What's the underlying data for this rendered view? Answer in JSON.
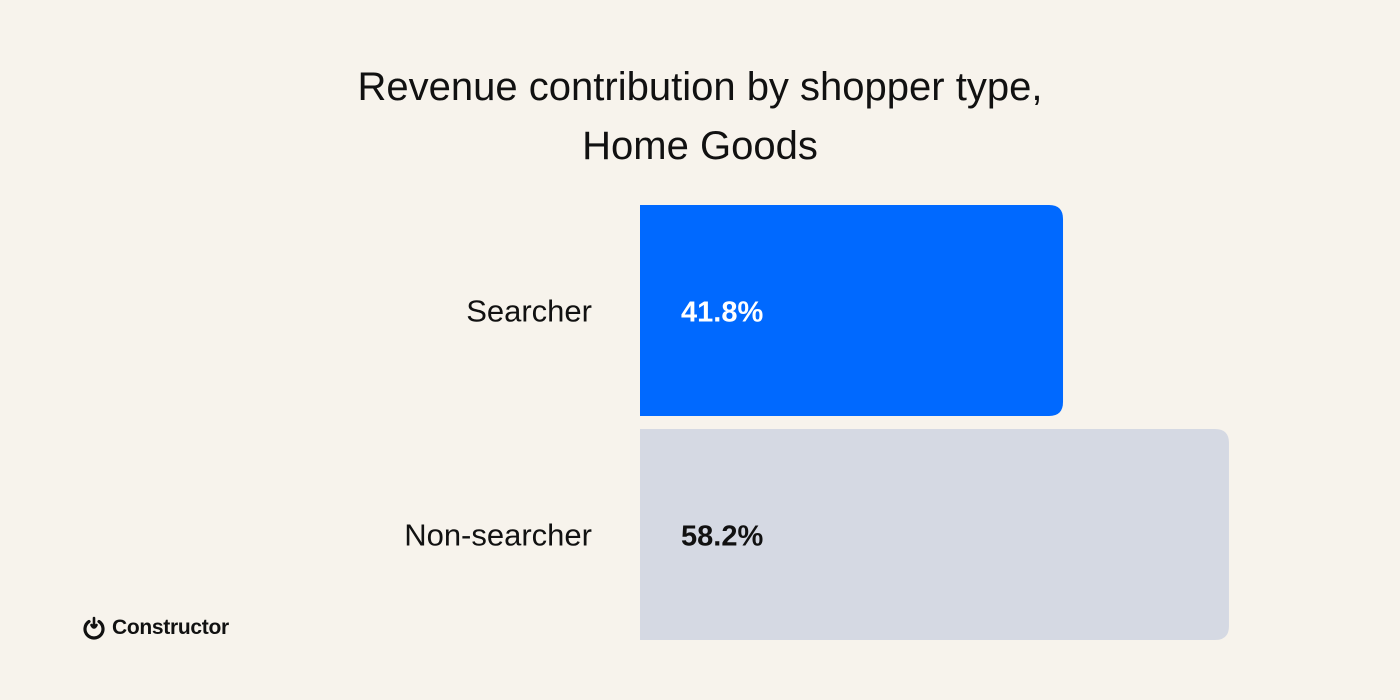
{
  "chart_data": {
    "type": "bar",
    "orientation": "horizontal",
    "title": "Revenue contribution by shopper type,",
    "subtitle": "Home Goods",
    "categories": [
      "Searcher",
      "Non-searcher"
    ],
    "values": [
      41.8,
      58.2
    ],
    "value_labels": [
      "41.8%",
      "58.2%"
    ],
    "xlim": [
      0,
      100
    ],
    "grid": false,
    "colors": [
      "#0069ff",
      "#d5d9e3"
    ],
    "label_colors": [
      "#ffffff",
      "#111111"
    ]
  },
  "background": "#f7f3ec",
  "logo": {
    "text": "Constructor",
    "icon": "power-icon"
  }
}
